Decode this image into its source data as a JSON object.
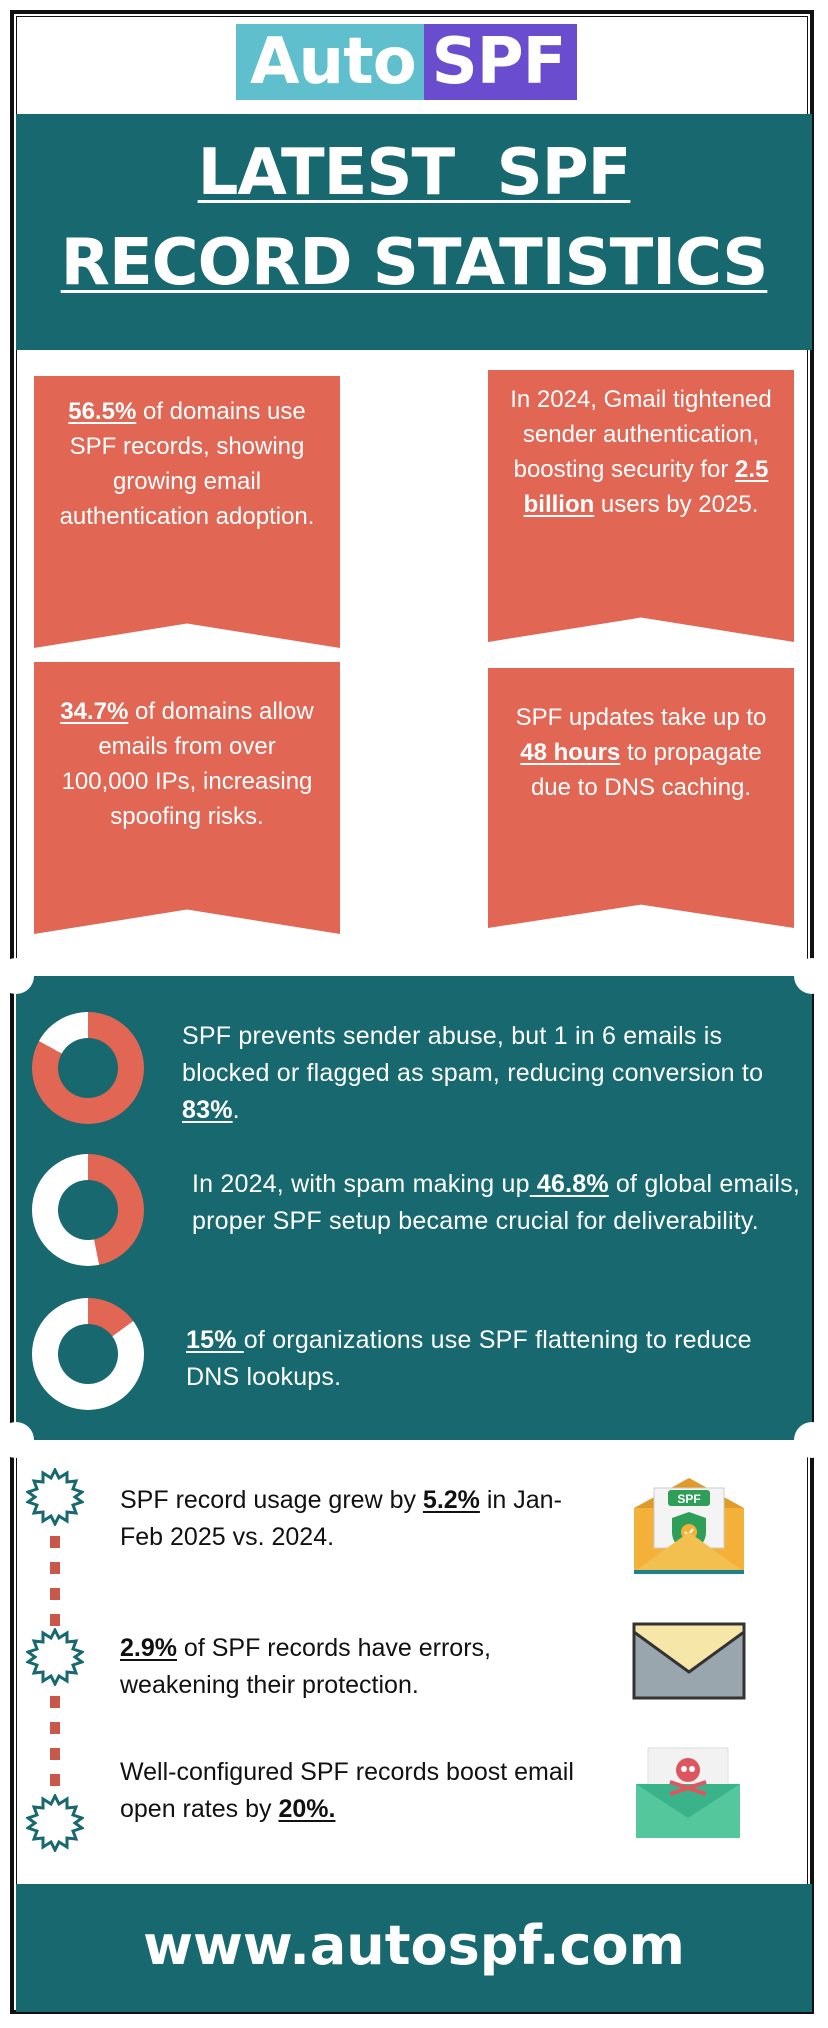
{
  "logo": {
    "part1": "Auto",
    "part2": "SPF"
  },
  "title": {
    "line1": "LATEST  SPF",
    "line2": "RECORD STATISTICS"
  },
  "ribbons": [
    {
      "highlight": "56.5%",
      "before": "",
      "after": " of domains use SPF records, showing growing email authentication adoption."
    },
    {
      "before": "In 2024, Gmail tightened sender authentication, boosting security for ",
      "highlight": "2.5 billion",
      "after": " users by 2025."
    },
    {
      "highlight": "34.7%",
      "before": "",
      "after": " of domains allow emails from over 100,000 IPs, increasing spoofing risks."
    },
    {
      "before": "SPF updates take up to ",
      "highlight": "48 hours",
      "after": " to propagate due to DNS caching."
    }
  ],
  "donut_stats": [
    {
      "before": "SPF prevents sender abuse, but 1 in 6 emails is blocked or flagged as spam, reducing conversion to ",
      "highlight": "83%",
      "after": ".",
      "percent": 83
    },
    {
      "before": "In 2024, with spam making up",
      "highlight": " 46.8%",
      "after": " of global emails, proper SPF setup became crucial for deliverability.",
      "percent": 46.8
    },
    {
      "before": "",
      "highlight": "15% ",
      "after": "of organizations use SPF flattening to reduce DNS lookups.",
      "percent": 15
    }
  ],
  "list_stats": [
    {
      "before": "SPF record usage grew by ",
      "highlight": "5.2%",
      "after": " in Jan-Feb 2025 vs. 2024.",
      "icon": "spf-envelope-shield-icon"
    },
    {
      "before": "",
      "highlight": "2.9%",
      "after": " of SPF records have errors, weakening their protection.",
      "icon": "envelope-icon"
    },
    {
      "before": "Well-configured SPF records boost email open rates by ",
      "highlight": "20%.",
      "after": "",
      "icon": "envelope-skull-icon"
    }
  ],
  "spf_badge": "SPF",
  "footer": {
    "url": "www.autospf.com"
  },
  "colors": {
    "teal": "#17686f",
    "coral": "#e26654",
    "logo_cyan": "#5fbfcc",
    "logo_purple": "#6a4ccf"
  }
}
